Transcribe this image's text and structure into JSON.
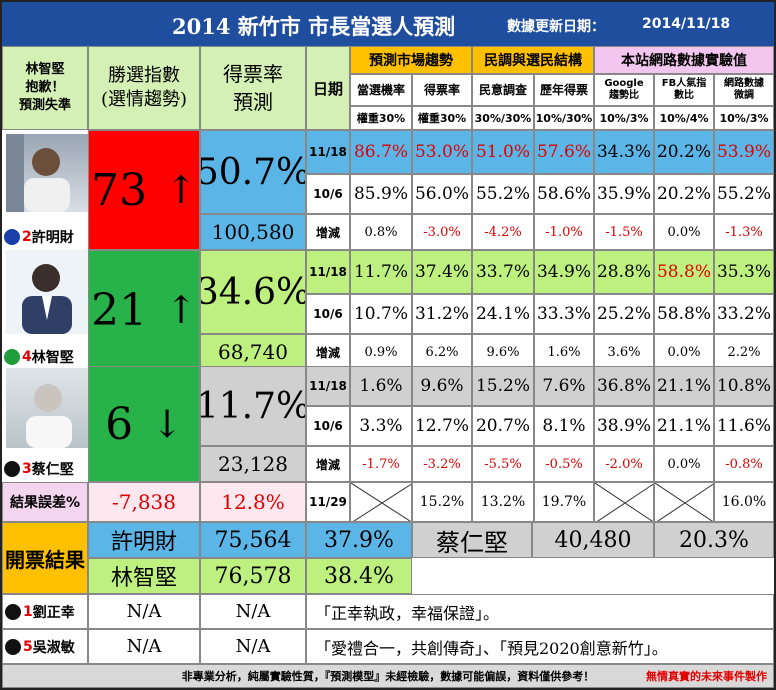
{
  "header": {
    "title": "2014 新竹市 市長當選人預測",
    "update_label": "數據更新日期：",
    "update_date": "2014/11/18"
  },
  "columns": {
    "apology": "林智堅\n抱歉！\n預測失準",
    "index": "勝選指數\n(選情趨勢)",
    "rate": "得票率\n預測",
    "date": "日期",
    "group_market": "預測市場趨勢",
    "group_poll": "民調與選民結構",
    "group_site": "本站網路數據實驗值",
    "sub": [
      "當選機率",
      "得票率",
      "民意調查",
      "歷年得票",
      "Google\n趨勢比",
      "FB人氣指\n數比",
      "網路數據\n微調"
    ],
    "weights": [
      "權重30%",
      "權重30%",
      "30%/30%",
      "10%/30%",
      "10%/3%",
      "10%/4%",
      "10%/3%"
    ]
  },
  "candidates": [
    {
      "number": "2",
      "name": "許明財",
      "party_color": "#1a3fa8",
      "index": "73",
      "arrow": "↑",
      "rate": "50.7%",
      "votes": "100,580",
      "rows": [
        {
          "date": "11/18",
          "cells": [
            "86.7%",
            "53.0%",
            "51.0%",
            "57.6%",
            "34.3%",
            "20.2%",
            "53.9%"
          ],
          "red": [
            true,
            true,
            true,
            true,
            false,
            false,
            true
          ]
        },
        {
          "date": "10/6",
          "cells": [
            "85.9%",
            "56.0%",
            "55.2%",
            "58.6%",
            "35.9%",
            "20.2%",
            "55.2%"
          ],
          "red": [
            false,
            false,
            false,
            false,
            false,
            false,
            false
          ]
        },
        {
          "date": "增減",
          "cells": [
            "0.8%",
            "-3.0%",
            "-4.2%",
            "-1.0%",
            "-1.5%",
            "0.0%",
            "-1.3%"
          ],
          "red": [
            false,
            true,
            true,
            true,
            true,
            false,
            true
          ]
        }
      ]
    },
    {
      "number": "4",
      "name": "林智堅",
      "party_color": "#1f9d3a",
      "index": "21",
      "arrow": "↑",
      "rate": "34.6%",
      "votes": "68,740",
      "rows": [
        {
          "date": "11/18",
          "cells": [
            "11.7%",
            "37.4%",
            "33.7%",
            "34.9%",
            "28.8%",
            "58.8%",
            "35.3%"
          ],
          "red": [
            false,
            false,
            false,
            false,
            false,
            true,
            false
          ]
        },
        {
          "date": "10/6",
          "cells": [
            "10.7%",
            "31.2%",
            "24.1%",
            "33.3%",
            "25.2%",
            "58.8%",
            "33.2%"
          ],
          "red": [
            false,
            false,
            false,
            false,
            false,
            false,
            false
          ]
        },
        {
          "date": "增減",
          "cells": [
            "0.9%",
            "6.2%",
            "9.6%",
            "1.6%",
            "3.6%",
            "0.0%",
            "2.2%"
          ],
          "red": [
            false,
            false,
            false,
            false,
            false,
            false,
            false
          ]
        }
      ]
    },
    {
      "number": "3",
      "name": "蔡仁堅",
      "party_color": "#111111",
      "index": "6",
      "arrow": "↓",
      "rate": "11.7%",
      "votes": "23,128",
      "rows": [
        {
          "date": "11/18",
          "cells": [
            "1.6%",
            "9.6%",
            "15.2%",
            "7.6%",
            "36.8%",
            "21.1%",
            "10.8%"
          ],
          "red": [
            false,
            false,
            false,
            false,
            false,
            false,
            false
          ]
        },
        {
          "date": "10/6",
          "cells": [
            "3.3%",
            "12.7%",
            "20.7%",
            "8.1%",
            "38.9%",
            "21.1%",
            "11.6%"
          ],
          "red": [
            false,
            false,
            false,
            false,
            false,
            false,
            false
          ]
        },
        {
          "date": "增減",
          "cells": [
            "-1.7%",
            "-3.2%",
            "-5.5%",
            "-0.5%",
            "-2.0%",
            "0.0%",
            "-0.8%"
          ],
          "red": [
            true,
            true,
            true,
            true,
            true,
            false,
            true
          ]
        }
      ]
    }
  ],
  "error_row": {
    "label": "結果誤差%",
    "index_err": "-7,838",
    "rate_err": "12.8%",
    "date": "11/29",
    "cells": [
      "",
      "15.2%",
      "13.2%",
      "19.7%",
      "",
      "",
      "16.0%"
    ]
  },
  "results": {
    "label": "開票結果",
    "r1": {
      "name": "許明財",
      "votes": "75,564",
      "pct": "37.9%"
    },
    "r2": {
      "name": "林智堅",
      "votes": "76,578",
      "pct": "38.4%"
    },
    "r3": {
      "name": "蔡仁堅",
      "votes": "40,480",
      "pct": "20.3%"
    }
  },
  "others": [
    {
      "number": "1",
      "name": "劉正幸",
      "a": "N/A",
      "b": "N/A",
      "slogan": "「正幸執政，幸福保證」。"
    },
    {
      "number": "5",
      "name": "吳淑敏",
      "a": "N/A",
      "b": "N/A",
      "slogan": "「愛禮合一，共創傳奇」、「預見2020創意新竹」。"
    }
  ],
  "footer": {
    "disclaimer": "非專業分析，純屬實驗性質，『預測模型』未經檢驗，數據可能偏誤，資料僅供參考！",
    "credit": "無情真實的未來事件製作"
  }
}
